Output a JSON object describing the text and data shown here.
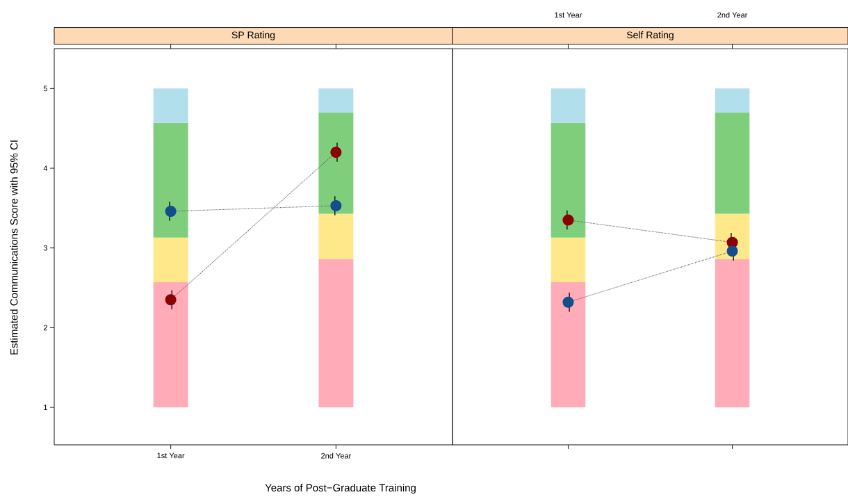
{
  "chart_data": [
    {
      "type": "bar",
      "title": "SP Rating",
      "xlabel": "Years of Post−Graduate Training",
      "ylabel": "Estimated Communications Score with 95% CI",
      "categories": [
        "1st Year",
        "2nd Year"
      ],
      "ylim": [
        0.53,
        5.5
      ],
      "yticks": [
        1,
        2,
        3,
        4,
        5
      ],
      "grid": false,
      "series": [
        {
          "color": "#ffacb8",
          "base": [
            1,
            1
          ],
          "values": [
            1.57,
            1.86
          ]
        },
        {
          "color": "#ffe88a",
          "base": [
            2.57,
            2.86
          ],
          "values": [
            0.56,
            0.57
          ]
        },
        {
          "color": "#7ece7c",
          "base": [
            3.13,
            3.43
          ],
          "values": [
            1.44,
            1.27
          ]
        },
        {
          "color": "#b2dfec",
          "base": [
            4.57,
            4.7
          ],
          "values": [
            0.43,
            0.3
          ]
        },
        {
          "type": "line",
          "color": "#124e8c",
          "marker": "circle",
          "line_style": "dotted",
          "values": [
            3.46,
            3.53
          ],
          "errors": [
            0.12,
            0.12
          ]
        },
        {
          "type": "line",
          "color": "#8b0000",
          "marker": "circle",
          "line_style": "dotted",
          "values": [
            2.35,
            4.2
          ],
          "errors": [
            0.12,
            0.12
          ]
        }
      ]
    },
    {
      "type": "bar",
      "title": "Self Rating",
      "categories": [
        "1st Year",
        "2nd Year"
      ],
      "ylim": [
        0.53,
        5.5
      ],
      "yticks": [
        1,
        2,
        3,
        4,
        5
      ],
      "tick_labels": "x",
      "grid": false,
      "series": [
        {
          "color": "#ffacb8",
          "base": [
            1,
            1
          ],
          "values": [
            1.57,
            1.86
          ]
        },
        {
          "color": "#ffe88a",
          "base": [
            2.57,
            2.86
          ],
          "values": [
            0.56,
            0.57
          ]
        },
        {
          "color": "#7ece7c",
          "base": [
            3.13,
            3.43
          ],
          "values": [
            1.44,
            1.27
          ]
        },
        {
          "color": "#b2dfec",
          "base": [
            4.57,
            4.7
          ],
          "values": [
            0.43,
            0.3
          ]
        },
        {
          "type": "line",
          "color": "#8b0000",
          "marker": "circle",
          "line_style": "dotted",
          "values": [
            3.35,
            3.07
          ],
          "errors": [
            0.12,
            0.12
          ]
        },
        {
          "type": "line",
          "color": "#124e8c",
          "marker": "circle",
          "line_style": "dotted",
          "values": [
            2.32,
            2.96
          ],
          "errors": [
            0.12,
            0.12
          ]
        }
      ]
    }
  ]
}
